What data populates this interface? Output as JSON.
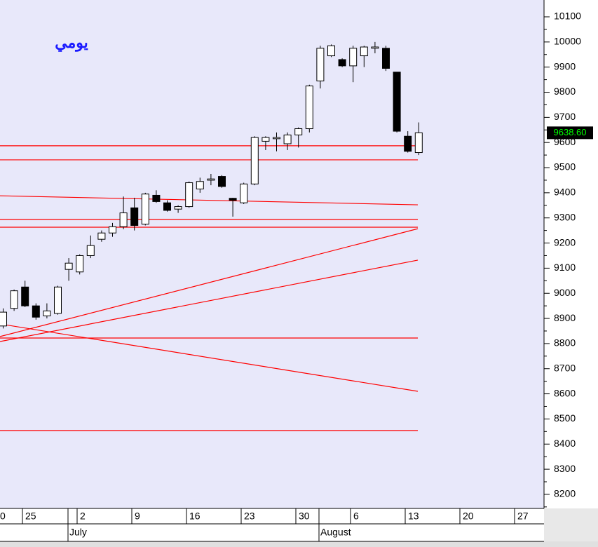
{
  "chart_data": {
    "type": "candlestick",
    "title": "يومي",
    "candles": [
      {
        "open": 8870,
        "high": 8940,
        "low": 8860,
        "close": 8925
      },
      {
        "open": 8940,
        "high": 9015,
        "low": 8930,
        "close": 9010
      },
      {
        "open": 9025,
        "high": 9050,
        "low": 8945,
        "close": 8950
      },
      {
        "open": 8950,
        "high": 8960,
        "low": 8895,
        "close": 8905
      },
      {
        "open": 8910,
        "high": 8960,
        "low": 8900,
        "close": 8930
      },
      {
        "open": 8920,
        "high": 9030,
        "low": 8915,
        "close": 9025
      },
      {
        "open": 9095,
        "high": 9140,
        "low": 9050,
        "close": 9120
      },
      {
        "open": 9085,
        "high": 9155,
        "low": 9075,
        "close": 9150
      },
      {
        "open": 9150,
        "high": 9230,
        "low": 9140,
        "close": 9190
      },
      {
        "open": 9215,
        "high": 9250,
        "low": 9205,
        "close": 9240
      },
      {
        "open": 9240,
        "high": 9280,
        "low": 9225,
        "close": 9265
      },
      {
        "open": 9265,
        "high": 9385,
        "low": 9255,
        "close": 9320
      },
      {
        "open": 9340,
        "high": 9380,
        "low": 9250,
        "close": 9270
      },
      {
        "open": 9275,
        "high": 9400,
        "low": 9270,
        "close": 9395
      },
      {
        "open": 9390,
        "high": 9410,
        "low": 9360,
        "close": 9365
      },
      {
        "open": 9360,
        "high": 9370,
        "low": 9325,
        "close": 9330
      },
      {
        "open": 9335,
        "high": 9350,
        "low": 9320,
        "close": 9345
      },
      {
        "open": 9345,
        "high": 9445,
        "low": 9340,
        "close": 9440
      },
      {
        "open": 9415,
        "high": 9460,
        "low": 9400,
        "close": 9445
      },
      {
        "open": 9450,
        "high": 9475,
        "low": 9430,
        "close": 9455
      },
      {
        "open": 9465,
        "high": 9470,
        "low": 9420,
        "close": 9425
      },
      {
        "open": 9378,
        "high": 9380,
        "low": 9305,
        "close": 9370
      },
      {
        "open": 9360,
        "high": 9440,
        "low": 9355,
        "close": 9435
      },
      {
        "open": 9435,
        "high": 9625,
        "low": 9430,
        "close": 9620
      },
      {
        "open": 9605,
        "high": 9625,
        "low": 9570,
        "close": 9620
      },
      {
        "open": 9615,
        "high": 9640,
        "low": 9565,
        "close": 9620
      },
      {
        "open": 9595,
        "high": 9640,
        "low": 9570,
        "close": 9630
      },
      {
        "open": 9630,
        "high": 9660,
        "low": 9580,
        "close": 9655
      },
      {
        "open": 9655,
        "high": 9830,
        "low": 9640,
        "close": 9825
      },
      {
        "open": 9845,
        "high": 9985,
        "low": 9815,
        "close": 9975
      },
      {
        "open": 9945,
        "high": 9990,
        "low": 9940,
        "close": 9985
      },
      {
        "open": 9930,
        "high": 9935,
        "low": 9900,
        "close": 9905
      },
      {
        "open": 9905,
        "high": 9985,
        "low": 9840,
        "close": 9975
      },
      {
        "open": 9945,
        "high": 9985,
        "low": 9900,
        "close": 9980
      },
      {
        "open": 9975,
        "high": 10000,
        "low": 9955,
        "close": 9980
      },
      {
        "open": 9975,
        "high": 9985,
        "low": 9885,
        "close": 9895
      },
      {
        "open": 9880,
        "high": 9880,
        "low": 9640,
        "close": 9645
      },
      {
        "open": 9625,
        "high": 9645,
        "low": 9560,
        "close": 9565
      },
      {
        "open": 9560,
        "high": 9680,
        "low": 9550,
        "close": 9638.6
      }
    ],
    "ylim": [
      8144,
      10167
    ],
    "yticks": [
      8200,
      8300,
      8400,
      8500,
      8600,
      8700,
      8800,
      8900,
      9000,
      9100,
      9200,
      9300,
      9400,
      9500,
      9600,
      9700,
      9800,
      9900,
      10000,
      10100
    ],
    "last_price": {
      "value": 9638.6,
      "label": "9638.60"
    },
    "xtick_labels": [
      "0",
      "25",
      "2",
      "9",
      "16",
      "23",
      "30",
      "6",
      "13",
      "20",
      "27"
    ],
    "months": [
      "July",
      "August"
    ],
    "lines": [
      {
        "values": [
          9587,
          9587
        ]
      },
      {
        "values": [
          9531,
          9531
        ]
      },
      {
        "values": [
          9388,
          9352
        ]
      },
      {
        "values": [
          9294,
          9294
        ]
      },
      {
        "values": [
          9263,
          9263
        ]
      },
      {
        "values": [
          8828,
          9257
        ]
      },
      {
        "values": [
          8808,
          9132
        ]
      },
      {
        "values": [
          8878,
          8610
        ]
      },
      {
        "values": [
          8822,
          8822
        ]
      },
      {
        "values": [
          8454,
          8454
        ]
      }
    ],
    "line_color": "#ff0000",
    "up_color": "#ffffff",
    "down_color": "#000000"
  }
}
